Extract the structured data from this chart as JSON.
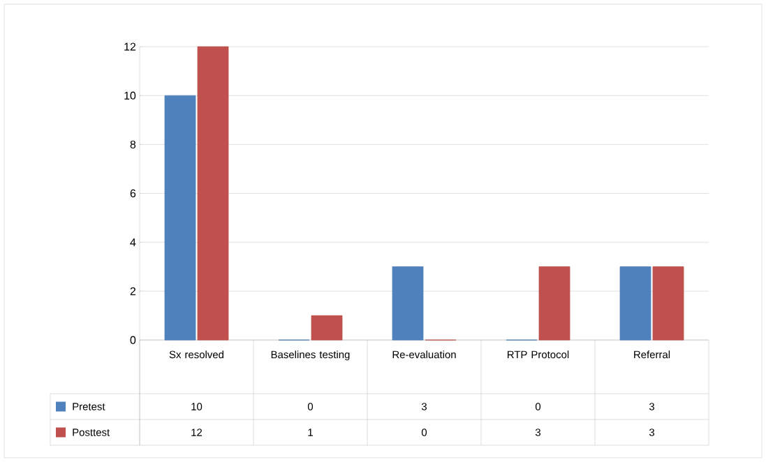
{
  "chart_data": {
    "type": "bar",
    "categories": [
      "Sx resolved",
      "Baselines testing",
      "Re-evaluation",
      "RTP Protocol",
      "Referral"
    ],
    "series": [
      {
        "name": "Pretest",
        "color": "#4f81bd",
        "values": [
          10,
          0,
          3,
          0,
          3
        ]
      },
      {
        "name": "Posttest",
        "color": "#c0504d",
        "values": [
          12,
          1,
          0,
          3,
          3
        ]
      }
    ],
    "ylim": [
      0,
      12
    ],
    "yticks": [
      0,
      2,
      4,
      6,
      8,
      10,
      12
    ],
    "grid": "y",
    "legend": "bottom",
    "data_labels": true
  }
}
